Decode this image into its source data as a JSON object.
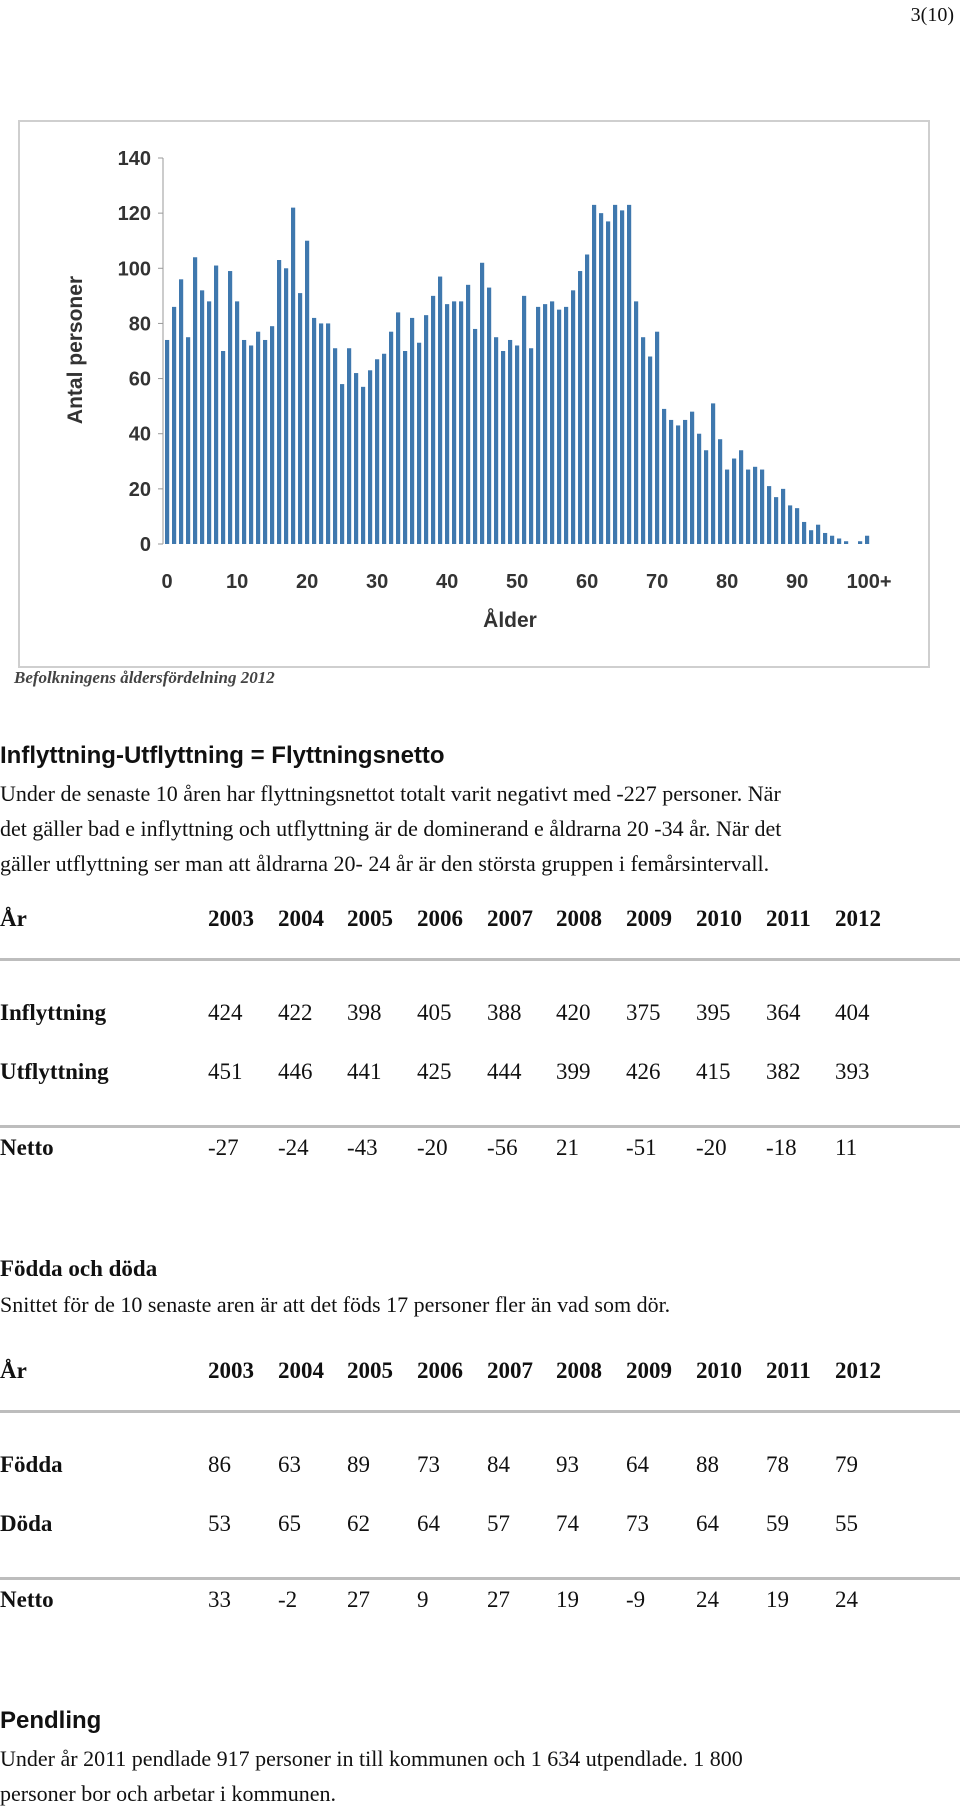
{
  "page_number": "3(10)",
  "chart_caption": "Befolkningens åldersfördelning 2012",
  "chart_data": {
    "type": "bar",
    "xlabel": "Ålder",
    "ylabel": "Antal personer",
    "ylim": [
      0,
      140
    ],
    "yticks": [
      "0",
      "20",
      "40",
      "60",
      "80",
      "100",
      "120",
      "140"
    ],
    "xticks": [
      {
        "age": 0,
        "label": "0"
      },
      {
        "age": 10,
        "label": "10"
      },
      {
        "age": 20,
        "label": "20"
      },
      {
        "age": 30,
        "label": "30"
      },
      {
        "age": 40,
        "label": "40"
      },
      {
        "age": 50,
        "label": "50"
      },
      {
        "age": 60,
        "label": "60"
      },
      {
        "age": 70,
        "label": "70"
      },
      {
        "age": 80,
        "label": "80"
      },
      {
        "age": 90,
        "label": "90"
      },
      {
        "age": 100,
        "label": "100+"
      }
    ],
    "grid": false,
    "bar_color": "#3f78ae",
    "values": [
      74,
      86,
      96,
      75,
      104,
      92,
      88,
      101,
      70,
      99,
      88,
      74,
      72,
      77,
      74,
      79,
      103,
      100,
      122,
      91,
      110,
      82,
      80,
      80,
      71,
      58,
      71,
      62,
      57,
      63,
      67,
      69,
      77,
      84,
      70,
      82,
      73,
      83,
      90,
      97,
      87,
      88,
      88,
      94,
      78,
      102,
      93,
      75,
      70,
      74,
      72,
      90,
      71,
      86,
      87,
      88,
      85,
      86,
      92,
      99,
      105,
      123,
      120,
      117,
      123,
      121,
      123,
      88,
      75,
      68,
      77,
      49,
      45,
      43,
      45,
      48,
      40,
      34,
      51,
      38,
      27,
      31,
      34,
      27,
      28,
      27,
      21,
      17,
      20,
      14,
      13,
      8,
      5,
      7,
      4,
      3,
      2,
      1,
      0,
      1,
      3
    ]
  },
  "migration": {
    "heading": "Inflyttning-Utflyttning = Flyttningsnetto",
    "paragraph": [
      "Under de senaste 10 åren har flyttningsnettot totalt varit negativt med -227 personer. När",
      "det gäller bad e inflyttning och utflyttning är de dominerand e åldrarna 20 -34 år. När det",
      "gäller utflyttning ser man att åldrarna 20- 24 år är den största gruppen i femårsintervall."
    ],
    "table": {
      "year_label": "År",
      "years": [
        "2003",
        "2004",
        "2005",
        "2006",
        "2007",
        "2008",
        "2009",
        "2010",
        "2011",
        "2012"
      ],
      "rows": [
        {
          "label": "Inflyttning",
          "values": [
            "424",
            "422",
            "398",
            "405",
            "388",
            "420",
            "375",
            "395",
            "364",
            "404"
          ]
        },
        {
          "label": "Utflyttning",
          "values": [
            "451",
            "446",
            "441",
            "425",
            "444",
            "399",
            "426",
            "415",
            "382",
            "393"
          ]
        }
      ],
      "net": {
        "label": "Netto",
        "values": [
          "-27",
          "-24",
          "-43",
          "-20",
          "-56",
          "21",
          "-51",
          "-20",
          "-18",
          "11"
        ]
      }
    }
  },
  "births_deaths": {
    "heading": "Födda och döda",
    "paragraph": [
      "Snittet för de 10 senaste aren är att det föds 17 personer fler än vad som dör."
    ],
    "table": {
      "year_label": "År",
      "years": [
        "2003",
        "2004",
        "2005",
        "2006",
        "2007",
        "2008",
        "2009",
        "2010",
        "2011",
        "2012"
      ],
      "rows": [
        {
          "label": "Födda",
          "values": [
            "86",
            "63",
            "89",
            "73",
            "84",
            "93",
            "64",
            "88",
            "78",
            "79"
          ]
        },
        {
          "label": "Döda",
          "values": [
            "53",
            "65",
            "62",
            "64",
            "57",
            "74",
            "73",
            "64",
            "59",
            "55"
          ]
        }
      ],
      "net": {
        "label": "Netto",
        "values": [
          "33",
          "-2",
          "27",
          "9",
          "27",
          "19",
          "-9",
          "24",
          "19",
          "24"
        ]
      }
    }
  },
  "commuting": {
    "heading": "Pendling",
    "paragraph": [
      "Under år 2011 pendlade 917 personer in till kommunen och 1 634 utpendlade. 1 800",
      "personer bor och arbetar i kommunen."
    ]
  }
}
